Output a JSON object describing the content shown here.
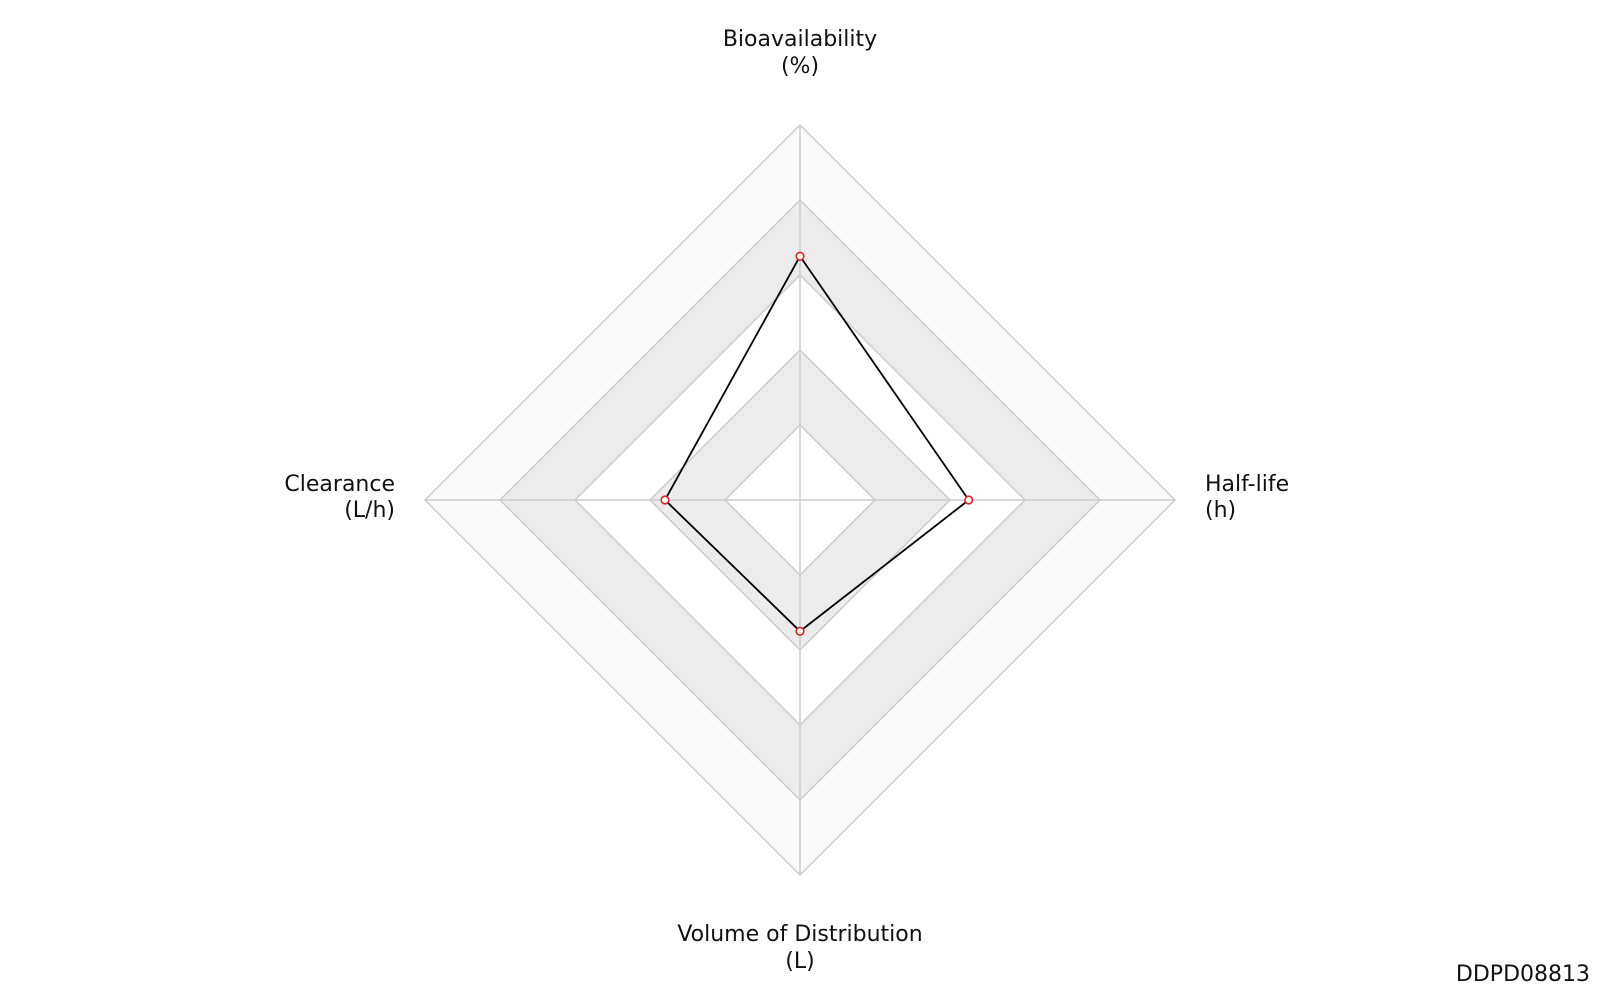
{
  "chart_data": {
    "type": "radar",
    "categories": [
      "Bioavailability",
      "Half-life",
      "Volume of Distribution",
      "Clearance"
    ],
    "units": [
      "(%)",
      "(h)",
      "(L)",
      "(L/h)"
    ],
    "series": [
      {
        "color": "#000000",
        "marker_color": "#d62728",
        "values": [
          0.65,
          0.45,
          0.35,
          0.36
        ]
      }
    ],
    "rlim": [
      0,
      1
    ],
    "rticks": [
      0.2,
      0.4,
      0.6,
      0.8,
      1.0
    ],
    "band_colors": [
      "#ffffff",
      "#ececec",
      "#ffffff",
      "#ececec",
      "#fafafa"
    ],
    "grid_color": "#cccccc",
    "watermark": "DDPD08813"
  }
}
